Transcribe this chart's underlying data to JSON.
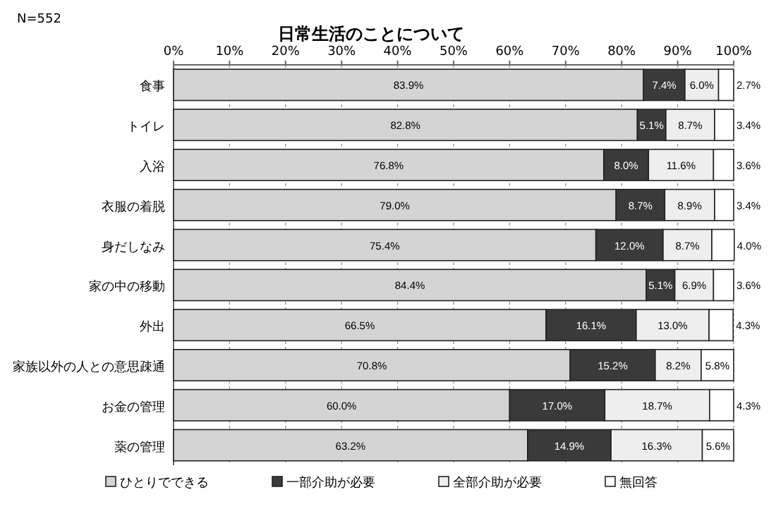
{
  "chart_data": {
    "type": "bar",
    "orientation": "horizontal",
    "stacked": true,
    "title": "日常生活のことについて",
    "annotations": [
      "N=552"
    ],
    "categories": [
      "食事",
      "トイレ",
      "入浴",
      "衣服の着脱",
      "身だしなみ",
      "家の中の移動",
      "外出",
      "家族以外の人との意思疎通",
      "お金の管理",
      "薬の管理"
    ],
    "xlim": [
      0,
      100
    ],
    "xticks": [
      {
        "value": 0,
        "label": "0%"
      },
      {
        "value": 10,
        "label": "10%"
      },
      {
        "value": 20,
        "label": "20%"
      },
      {
        "value": 30,
        "label": "30%"
      },
      {
        "value": 40,
        "label": "40%"
      },
      {
        "value": 50,
        "label": "50%"
      },
      {
        "value": 60,
        "label": "60%"
      },
      {
        "value": 70,
        "label": "70%"
      },
      {
        "value": 80,
        "label": "80%"
      },
      {
        "value": 90,
        "label": "90%"
      },
      {
        "value": 100,
        "label": "100%"
      }
    ],
    "grid": "x",
    "legend": "bottom",
    "series": [
      {
        "name": "ひとりでできる",
        "color": "#d4d4d4",
        "values": [
          83.9,
          82.8,
          76.8,
          79.0,
          75.4,
          84.4,
          66.5,
          70.8,
          60.0,
          63.2
        ],
        "value_labels": [
          "83.9%",
          "82.8%",
          "76.8%",
          "79.0%",
          "75.4%",
          "84.4%",
          "66.5%",
          "70.8%",
          "60.0%",
          "63.2%"
        ]
      },
      {
        "name": "一部介助が必要",
        "color": "#3a3a3a",
        "values": [
          7.4,
          5.1,
          8.0,
          8.7,
          12.0,
          5.1,
          16.1,
          15.2,
          17.0,
          14.9
        ],
        "value_labels": [
          "7.4%",
          "5.1%",
          "8.0%",
          "8.7%",
          "12.0%",
          "5.1%",
          "16.1%",
          "15.2%",
          "17.0%",
          "14.9%"
        ]
      },
      {
        "name": "全部介助が必要",
        "color": "#eeeeee",
        "values": [
          6.0,
          8.7,
          11.6,
          8.9,
          8.7,
          6.9,
          13.0,
          8.2,
          18.7,
          16.3
        ],
        "value_labels": [
          "6.0%",
          "8.7%",
          "11.6%",
          "8.9%",
          "8.7%",
          "6.9%",
          "13.0%",
          "8.2%",
          "18.7%",
          "16.3%"
        ]
      },
      {
        "name": "無回答",
        "color": "#ffffff",
        "values": [
          2.7,
          3.4,
          3.6,
          3.4,
          4.0,
          3.6,
          4.3,
          5.8,
          4.3,
          5.6
        ],
        "value_labels": [
          "2.7%",
          "3.4%",
          "3.6%",
          "3.4%",
          "4.0%",
          "3.6%",
          "4.3%",
          "5.8%",
          "4.3%",
          "5.6%"
        ]
      }
    ]
  }
}
